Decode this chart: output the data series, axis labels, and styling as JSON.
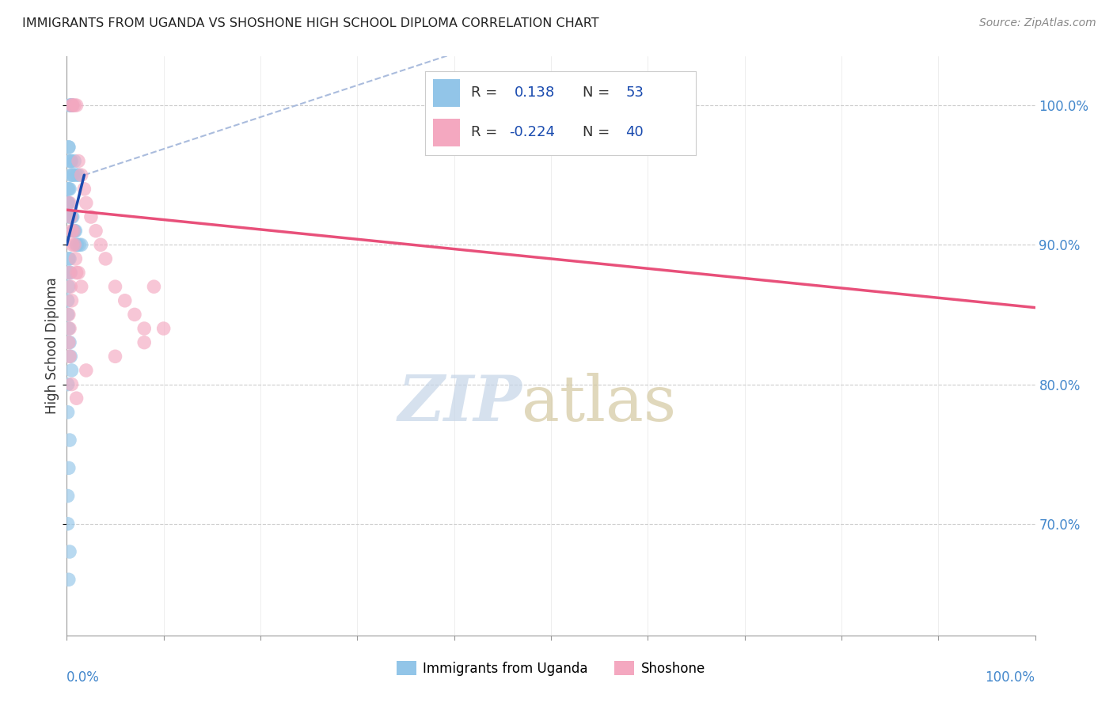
{
  "title": "IMMIGRANTS FROM UGANDA VS SHOSHONE HIGH SCHOOL DIPLOMA CORRELATION CHART",
  "source": "Source: ZipAtlas.com",
  "ylabel": "High School Diploma",
  "blue_color": "#92C5E8",
  "pink_color": "#F4A8C0",
  "blue_line_color": "#1A4BAF",
  "pink_line_color": "#E8507A",
  "dashed_line_color": "#AABCDD",
  "background_color": "#FFFFFF",
  "right_tick_color": "#4488CC",
  "xlim": [
    0.0,
    1.0
  ],
  "ylim": [
    0.62,
    1.035
  ],
  "yticks": [
    0.7,
    0.8,
    0.9,
    1.0
  ],
  "ytick_labels": [
    "70.0%",
    "80.0%",
    "90.0%",
    "100.0%"
  ],
  "blue_scatter_x": [
    0.005,
    0.005,
    0.004,
    0.006,
    0.003,
    0.002,
    0.002,
    0.003,
    0.004,
    0.005,
    0.008,
    0.01,
    0.012,
    0.007,
    0.006,
    0.004,
    0.003,
    0.002,
    0.001,
    0.001,
    0.001,
    0.001,
    0.002,
    0.003,
    0.004,
    0.005,
    0.006,
    0.007,
    0.008,
    0.009,
    0.01,
    0.011,
    0.013,
    0.015,
    0.002,
    0.003,
    0.004,
    0.001,
    0.002,
    0.001,
    0.001,
    0.002,
    0.003,
    0.004,
    0.005,
    0.001,
    0.001,
    0.003,
    0.002,
    0.001,
    0.001,
    0.003,
    0.002
  ],
  "blue_scatter_y": [
    1.0,
    1.0,
    1.0,
    1.0,
    1.0,
    0.97,
    0.97,
    0.96,
    0.96,
    0.96,
    0.96,
    0.95,
    0.95,
    0.95,
    0.95,
    0.95,
    0.94,
    0.94,
    0.94,
    0.93,
    0.93,
    0.93,
    0.93,
    0.92,
    0.92,
    0.92,
    0.92,
    0.91,
    0.91,
    0.91,
    0.9,
    0.9,
    0.9,
    0.9,
    0.89,
    0.89,
    0.88,
    0.88,
    0.87,
    0.86,
    0.85,
    0.84,
    0.83,
    0.82,
    0.81,
    0.8,
    0.78,
    0.76,
    0.74,
    0.72,
    0.7,
    0.68,
    0.66
  ],
  "pink_scatter_x": [
    0.005,
    0.006,
    0.008,
    0.01,
    0.012,
    0.015,
    0.018,
    0.02,
    0.025,
    0.03,
    0.035,
    0.04,
    0.05,
    0.06,
    0.07,
    0.08,
    0.09,
    0.1,
    0.003,
    0.004,
    0.005,
    0.006,
    0.007,
    0.008,
    0.009,
    0.01,
    0.012,
    0.015,
    0.003,
    0.004,
    0.005,
    0.002,
    0.003,
    0.002,
    0.003,
    0.005,
    0.01,
    0.02,
    0.05,
    0.08
  ],
  "pink_scatter_y": [
    1.0,
    1.0,
    1.0,
    1.0,
    0.96,
    0.95,
    0.94,
    0.93,
    0.92,
    0.91,
    0.9,
    0.89,
    0.87,
    0.86,
    0.85,
    0.84,
    0.87,
    0.84,
    0.93,
    0.92,
    0.91,
    0.9,
    0.91,
    0.9,
    0.89,
    0.88,
    0.88,
    0.87,
    0.88,
    0.87,
    0.86,
    0.85,
    0.84,
    0.83,
    0.82,
    0.8,
    0.79,
    0.81,
    0.82,
    0.83
  ],
  "blue_line_x": [
    0.0,
    0.018
  ],
  "blue_line_y": [
    0.9,
    0.95
  ],
  "dashed_line_x": [
    0.018,
    0.5
  ],
  "dashed_line_y": [
    0.95,
    1.06
  ],
  "pink_line_x": [
    0.0,
    1.0
  ],
  "pink_line_y": [
    0.925,
    0.855
  ],
  "legend_r1_text": "R =   0.138",
  "legend_n1_text": "N = 53",
  "legend_r2_text": "R = -0.224",
  "legend_n2_text": "N = 40",
  "legend_r1_color": "#1A4BAF",
  "legend_r2_color": "#1A4BAF",
  "legend_n_color": "#1A4BAF",
  "watermark_zip_color": "#C5D5E8",
  "watermark_atlas_color": "#D4C8A0"
}
